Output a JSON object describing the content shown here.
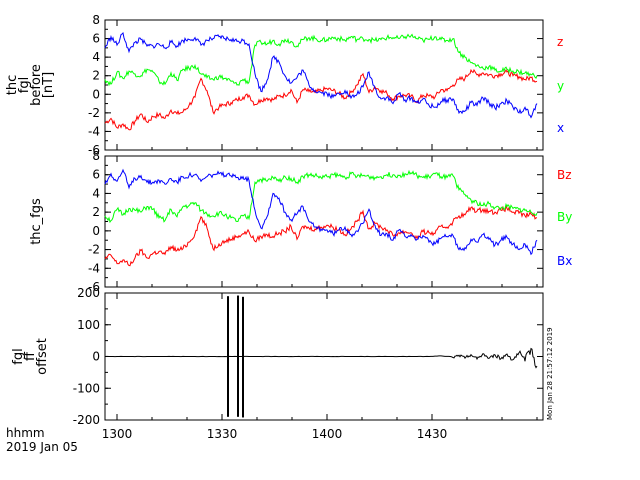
{
  "chart_data": [
    {
      "type": "line",
      "panel": "thc_fgl_before",
      "ylabel": [
        "thc",
        "fgl",
        "before",
        "[nT]"
      ],
      "ylim": [
        -6,
        8
      ],
      "yticks": [
        -6,
        -4,
        -2,
        0,
        2,
        4,
        6,
        8
      ],
      "x": [
        0,
        6,
        12,
        18,
        24,
        30,
        36,
        42,
        48,
        54,
        60,
        66,
        72,
        78,
        84,
        90,
        96,
        102,
        108,
        114,
        120,
        126,
        132,
        138,
        144,
        150,
        156,
        162,
        168,
        174,
        180,
        186,
        192,
        198,
        204,
        210,
        216,
        222,
        228,
        234,
        240,
        246,
        252,
        258,
        264,
        270,
        276,
        282,
        288,
        294,
        300,
        306,
        312,
        318,
        324,
        330,
        336,
        342,
        348,
        354,
        360,
        366,
        372,
        378,
        384,
        390,
        396,
        402,
        408,
        414,
        420,
        426,
        432
      ],
      "series": [
        {
          "name": "z",
          "color": "#ff0000",
          "values": [
            -3.1,
            -2.6,
            -3.6,
            -3.2,
            -3.8,
            -2.9,
            -2.1,
            -3.0,
            -2.4,
            -2.2,
            -2.6,
            -1.7,
            -2.1,
            -1.9,
            -1.2,
            -0.3,
            1.7,
            0.4,
            -1.9,
            -1.4,
            -1.1,
            -0.9,
            -0.6,
            -0.3,
            -0.1,
            -1.1,
            -0.6,
            -0.4,
            -0.6,
            -0.2,
            -0.1,
            0.5,
            -0.9,
            0.5,
            0.3,
            0.2,
            0.4,
            0.6,
            0.4,
            0.1,
            -0.4,
            0.2,
            1.0,
            2.2,
            0.2,
            0.8,
            0.4,
            0.1,
            -0.5,
            -0.2,
            -0.1,
            -0.2,
            -0.8,
            -0.1,
            -0.2,
            -0.3,
            0.5,
            0.4,
            1.0,
            1.6,
            1.7,
            2.6,
            2.1,
            2.3,
            2.1,
            2.0,
            2.2,
            2.4,
            2.0,
            1.9,
            1.6,
            1.8,
            1.4
          ]
        },
        {
          "name": "y",
          "color": "#00ff00",
          "values": [
            1.6,
            1.1,
            2.4,
            1.7,
            2.5,
            2.2,
            2.0,
            2.7,
            2.4,
            1.4,
            1.1,
            2.3,
            1.5,
            2.7,
            2.8,
            3.1,
            2.2,
            1.8,
            1.6,
            1.9,
            1.7,
            1.4,
            1.0,
            1.6,
            1.3,
            5.3,
            5.6,
            5.4,
            5.8,
            5.4,
            5.9,
            5.7,
            5.2,
            5.9,
            6.1,
            6.0,
            5.8,
            5.9,
            6.1,
            6.0,
            5.8,
            6.2,
            5.9,
            6.0,
            5.9,
            5.8,
            5.9,
            6.1,
            6.1,
            6.0,
            6.2,
            6.3,
            6.0,
            5.8,
            5.9,
            6.2,
            5.9,
            5.8,
            6.0,
            4.5,
            4.0,
            3.4,
            3.1,
            2.8,
            3.0,
            2.6,
            2.5,
            2.7,
            2.5,
            2.4,
            2.3,
            2.1,
            2.0
          ]
        },
        {
          "name": "x",
          "color": "#0000ff",
          "values": [
            5.0,
            6.2,
            5.3,
            6.6,
            4.6,
            5.6,
            5.9,
            5.2,
            5.2,
            5.4,
            5.0,
            5.6,
            5.2,
            5.8,
            5.9,
            6.1,
            5.3,
            5.8,
            6.0,
            6.2,
            6.0,
            5.9,
            5.7,
            5.8,
            5.4,
            2.2,
            0.3,
            1.5,
            4.0,
            3.5,
            2.0,
            1.2,
            1.8,
            2.6,
            1.0,
            0.4,
            0.2,
            0.1,
            -0.3,
            0.1,
            0.4,
            -0.4,
            0.0,
            0.8,
            2.4,
            0.6,
            -0.5,
            -0.3,
            -1.0,
            0.1,
            -0.6,
            -0.4,
            -0.9,
            -0.5,
            -1.2,
            -1.4,
            -0.8,
            -0.6,
            -0.5,
            -2.0,
            -1.8,
            -0.9,
            -1.2,
            -0.4,
            -0.9,
            -1.5,
            -1.0,
            -0.7,
            -1.4,
            -2.0,
            -1.4,
            -2.5,
            -1.0
          ]
        }
      ],
      "legend": [
        "z",
        "y",
        "x"
      ]
    },
    {
      "type": "line",
      "panel": "thc_fgs",
      "ylabel": [
        "thc_fgs"
      ],
      "ylim": [
        -6,
        8
      ],
      "yticks": [
        -6,
        -4,
        -2,
        0,
        2,
        4,
        6,
        8
      ],
      "x": [
        0,
        6,
        12,
        18,
        24,
        30,
        36,
        42,
        48,
        54,
        60,
        66,
        72,
        78,
        84,
        90,
        96,
        102,
        108,
        114,
        120,
        126,
        132,
        138,
        144,
        150,
        156,
        162,
        168,
        174,
        180,
        186,
        192,
        198,
        204,
        210,
        216,
        222,
        228,
        234,
        240,
        246,
        252,
        258,
        264,
        270,
        276,
        282,
        288,
        294,
        300,
        306,
        312,
        318,
        324,
        330,
        336,
        342,
        348,
        354,
        360,
        366,
        372,
        378,
        384,
        390,
        396,
        402,
        408,
        414,
        420,
        426,
        432
      ],
      "series": [
        {
          "name": "Bz",
          "color": "#ff0000",
          "values": [
            -3.0,
            -2.6,
            -3.5,
            -3.1,
            -3.7,
            -2.9,
            -2.1,
            -2.9,
            -2.4,
            -2.2,
            -2.5,
            -1.7,
            -2.1,
            -1.9,
            -1.2,
            -0.3,
            1.5,
            0.3,
            -1.9,
            -1.4,
            -1.1,
            -0.9,
            -0.6,
            -0.3,
            -0.1,
            -1.1,
            -0.6,
            -0.4,
            -0.6,
            -0.2,
            -0.1,
            0.5,
            -0.9,
            0.5,
            0.3,
            0.2,
            0.4,
            0.6,
            0.4,
            0.1,
            -0.4,
            0.2,
            1.0,
            2.1,
            0.2,
            0.8,
            0.4,
            0.1,
            -0.5,
            -0.2,
            -0.1,
            -0.2,
            -0.8,
            -0.1,
            -0.2,
            -0.3,
            0.5,
            0.4,
            1.0,
            1.6,
            1.7,
            2.5,
            2.1,
            2.3,
            2.1,
            2.0,
            2.2,
            2.4,
            2.0,
            1.9,
            1.6,
            1.8,
            1.4
          ]
        },
        {
          "name": "By",
          "color": "#00ff00",
          "values": [
            1.6,
            1.1,
            2.3,
            1.7,
            2.4,
            2.2,
            2.0,
            2.6,
            2.3,
            1.4,
            1.1,
            2.3,
            1.5,
            2.6,
            2.7,
            3.0,
            2.2,
            1.8,
            1.6,
            1.9,
            1.7,
            1.4,
            1.0,
            1.6,
            1.3,
            5.2,
            5.5,
            5.3,
            5.7,
            5.3,
            5.8,
            5.6,
            5.2,
            5.8,
            6.0,
            5.9,
            5.7,
            5.8,
            6.0,
            5.9,
            5.7,
            6.1,
            5.8,
            5.9,
            5.8,
            5.7,
            5.8,
            6.0,
            6.0,
            5.9,
            6.1,
            6.2,
            5.9,
            5.7,
            5.8,
            6.1,
            5.8,
            5.7,
            5.9,
            4.4,
            3.9,
            3.3,
            3.0,
            2.7,
            2.9,
            2.5,
            2.4,
            2.6,
            2.4,
            2.3,
            2.2,
            2.0,
            1.9
          ]
        },
        {
          "name": "Bx",
          "color": "#0000ff",
          "values": [
            5.0,
            6.1,
            5.3,
            6.5,
            4.6,
            5.6,
            5.9,
            5.2,
            5.2,
            5.4,
            5.0,
            5.6,
            5.2,
            5.8,
            5.9,
            6.0,
            5.3,
            5.8,
            6.0,
            6.1,
            5.9,
            5.9,
            5.7,
            5.8,
            5.4,
            2.2,
            0.3,
            1.5,
            4.0,
            3.5,
            2.0,
            1.2,
            1.8,
            2.6,
            1.0,
            0.4,
            0.2,
            0.1,
            -0.3,
            0.1,
            0.4,
            -0.4,
            0.0,
            0.8,
            2.3,
            0.6,
            -0.5,
            -0.3,
            -1.0,
            0.1,
            -0.6,
            -0.4,
            -0.9,
            -0.5,
            -1.2,
            -1.4,
            -0.8,
            -0.6,
            -0.5,
            -2.0,
            -1.8,
            -0.9,
            -1.2,
            -0.4,
            -0.9,
            -1.5,
            -1.0,
            -0.7,
            -1.4,
            -2.0,
            -1.4,
            -2.5,
            -1.0
          ]
        }
      ],
      "legend": [
        "Bz",
        "By",
        "Bx"
      ]
    },
    {
      "type": "line",
      "panel": "fgl_ff_offset",
      "ylabel": [
        "fgl",
        "ff",
        "offset"
      ],
      "ylim": [
        -200,
        200
      ],
      "yticks": [
        -200,
        -100,
        0,
        100,
        200
      ],
      "spikes": [
        {
          "x": 123,
          "low": -190,
          "high": 190
        },
        {
          "x": 133,
          "low": -190,
          "high": 192
        },
        {
          "x": 138,
          "low": -192,
          "high": 188
        }
      ],
      "series": [
        {
          "name": "",
          "color": "#000000",
          "x": [
            0,
            12,
            24,
            36,
            48,
            60,
            72,
            84,
            96,
            108,
            120,
            132,
            144,
            156,
            168,
            180,
            192,
            204,
            216,
            228,
            240,
            252,
            264,
            276,
            288,
            300,
            312,
            324,
            336,
            348,
            354,
            360,
            366,
            372,
            378,
            384,
            390,
            396,
            402,
            408,
            414,
            420,
            426,
            432
          ],
          "values": [
            0,
            0,
            0,
            0,
            0,
            0,
            0,
            0,
            0,
            0,
            0,
            0,
            0,
            0,
            0,
            0,
            0,
            0,
            0,
            0,
            0,
            0,
            0,
            0,
            0,
            0,
            0,
            0,
            2,
            -3,
            4,
            -5,
            6,
            -8,
            9,
            -6,
            5,
            -7,
            8,
            -10,
            12,
            -15,
            25,
            -30
          ]
        }
      ]
    }
  ],
  "xaxis": {
    "ticks": [
      {
        "x": 12,
        "label": "1300"
      },
      {
        "x": 117,
        "label": "1330"
      },
      {
        "x": 222,
        "label": "1400"
      },
      {
        "x": 327,
        "label": "1430"
      }
    ],
    "xlim": [
      0,
      438
    ]
  },
  "footer": {
    "units": "hhmm",
    "date": "2019 Jan 05"
  },
  "timestamp": "Mon Jan 28 21:57:12 2019"
}
